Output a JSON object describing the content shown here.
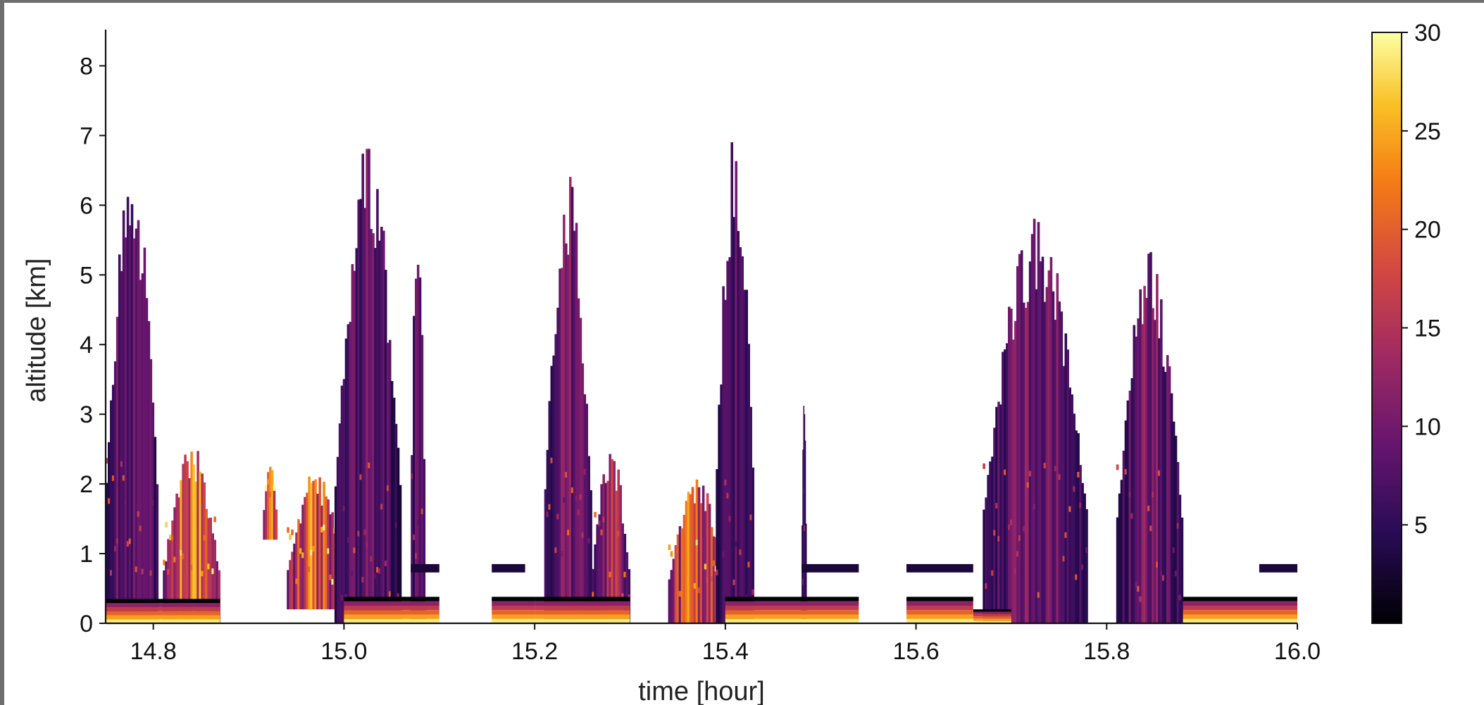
{
  "chart_data": {
    "type": "heatmap",
    "title": "",
    "xlabel": "time [hour]",
    "ylabel": "altitude [km]",
    "xlim": [
      14.75,
      16.0
    ],
    "ylim": [
      0,
      8.5
    ],
    "x_ticks": [
      "14.8",
      "15.0",
      "15.2",
      "15.4",
      "15.6",
      "15.8",
      "16.0"
    ],
    "x_tick_values": [
      14.8,
      15.0,
      15.2,
      15.4,
      15.6,
      15.8,
      16.0
    ],
    "y_ticks": [
      "0",
      "1",
      "2",
      "3",
      "4",
      "5",
      "6",
      "7",
      "8"
    ],
    "y_tick_values": [
      0,
      1,
      2,
      3,
      4,
      5,
      6,
      7,
      8
    ],
    "colormap": "inferno",
    "colorbar": {
      "range": [
        0,
        30
      ],
      "ticks": [
        "5",
        "10",
        "15",
        "20",
        "25",
        "30"
      ],
      "tick_values": [
        5,
        10,
        15,
        20,
        25,
        30
      ]
    },
    "grid": false,
    "features": [
      {
        "kind": "plume",
        "t0": 14.75,
        "t1": 14.805,
        "z0": 0.0,
        "z1": 6.9,
        "value": 9
      },
      {
        "kind": "plume",
        "t0": 14.81,
        "t1": 14.87,
        "z0": 0.0,
        "z1": 2.6,
        "value": 18
      },
      {
        "kind": "plume",
        "t0": 14.915,
        "t1": 14.93,
        "z0": 1.2,
        "z1": 2.3,
        "value": 20
      },
      {
        "kind": "plume",
        "t0": 14.94,
        "t1": 15.0,
        "z0": 0.2,
        "z1": 2.2,
        "value": 18
      },
      {
        "kind": "plume",
        "t0": 14.99,
        "t1": 15.06,
        "z0": 0.0,
        "z1": 7.1,
        "value": 8
      },
      {
        "kind": "plume",
        "t0": 15.07,
        "t1": 15.085,
        "z0": 0.0,
        "z1": 6.3,
        "value": 8
      },
      {
        "kind": "plume",
        "t0": 15.21,
        "t1": 15.26,
        "z0": 0.0,
        "z1": 6.5,
        "value": 9
      },
      {
        "kind": "plume",
        "t0": 15.26,
        "t1": 15.3,
        "z0": 0.0,
        "z1": 2.6,
        "value": 12
      },
      {
        "kind": "plume",
        "t0": 15.34,
        "t1": 15.4,
        "z0": 0.0,
        "z1": 2.2,
        "value": 18
      },
      {
        "kind": "plume",
        "t0": 15.39,
        "t1": 15.43,
        "z0": 0.0,
        "z1": 7.2,
        "value": 7
      },
      {
        "kind": "plume",
        "t0": 15.48,
        "t1": 15.485,
        "z0": 0.0,
        "z1": 3.5,
        "value": 6
      },
      {
        "kind": "plume",
        "t0": 15.67,
        "t1": 15.78,
        "z0": 0.0,
        "z1": 6.0,
        "value": 9
      },
      {
        "kind": "plume",
        "t0": 15.81,
        "t1": 15.88,
        "z0": 0.0,
        "z1": 5.4,
        "value": 9
      },
      {
        "kind": "boundary_layer",
        "t0": 14.75,
        "t1": 14.87,
        "z0": 0.0,
        "z1": 0.35,
        "value": 25
      },
      {
        "kind": "boundary_layer",
        "t0": 15.0,
        "t1": 15.1,
        "z0": 0.0,
        "z1": 0.38,
        "value": 25
      },
      {
        "kind": "boundary_layer",
        "t0": 15.155,
        "t1": 15.2,
        "z0": 0.0,
        "z1": 0.38,
        "value": 25
      },
      {
        "kind": "boundary_layer",
        "t0": 15.2,
        "t1": 15.3,
        "z0": 0.0,
        "z1": 0.38,
        "value": 25
      },
      {
        "kind": "boundary_layer",
        "t0": 15.4,
        "t1": 15.54,
        "z0": 0.0,
        "z1": 0.38,
        "value": 25
      },
      {
        "kind": "boundary_layer",
        "t0": 15.59,
        "t1": 15.66,
        "z0": 0.0,
        "z1": 0.38,
        "value": 25
      },
      {
        "kind": "boundary_layer",
        "t0": 15.66,
        "t1": 15.7,
        "z0": 0.0,
        "z1": 0.2,
        "value": 25
      },
      {
        "kind": "boundary_layer",
        "t0": 15.88,
        "t1": 16.0,
        "z0": 0.0,
        "z1": 0.38,
        "value": 25
      },
      {
        "kind": "thin_layer",
        "t0": 15.07,
        "t1": 15.1,
        "z0": 0.73,
        "z1": 0.85,
        "value": 3
      },
      {
        "kind": "thin_layer",
        "t0": 15.155,
        "t1": 15.19,
        "z0": 0.73,
        "z1": 0.85,
        "value": 3
      },
      {
        "kind": "thin_layer",
        "t0": 15.48,
        "t1": 15.54,
        "z0": 0.73,
        "z1": 0.85,
        "value": 3
      },
      {
        "kind": "thin_layer",
        "t0": 15.59,
        "t1": 15.66,
        "z0": 0.73,
        "z1": 0.85,
        "value": 3
      },
      {
        "kind": "thin_layer",
        "t0": 15.96,
        "t1": 16.0,
        "z0": 0.73,
        "z1": 0.85,
        "value": 3
      }
    ]
  }
}
